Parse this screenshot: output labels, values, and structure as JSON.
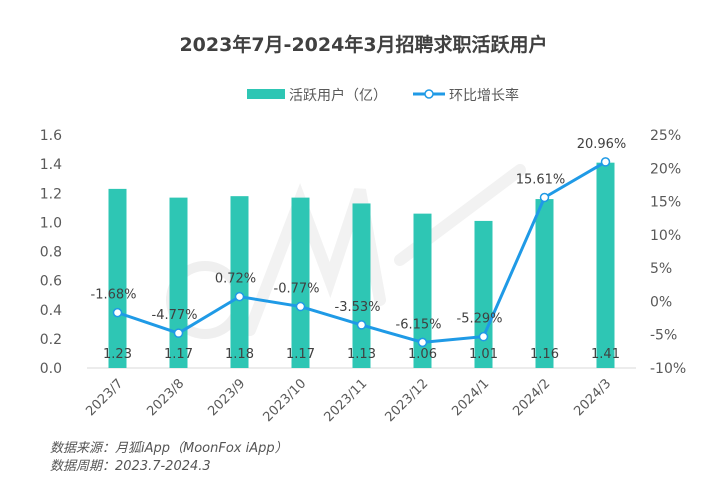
{
  "chart_data": {
    "type": "bar+line",
    "title": "2023年7月-2024年3月招聘求职活跃用户",
    "categories": [
      "2023/7",
      "2023/8",
      "2023/9",
      "2023/10",
      "2023/11",
      "2023/12",
      "2024/1",
      "2024/2",
      "2024/3"
    ],
    "series": [
      {
        "name": "活跃用户（亿）",
        "type": "bar",
        "axis": "left",
        "color": "#2ec6b4",
        "values": [
          1.23,
          1.17,
          1.18,
          1.17,
          1.13,
          1.06,
          1.01,
          1.16,
          1.41
        ],
        "labels": [
          "1.23",
          "1.17",
          "1.18",
          "1.17",
          "1.13",
          "1.06",
          "1.01",
          "1.16",
          "1.41"
        ]
      },
      {
        "name": "环比增长率",
        "type": "line",
        "axis": "right",
        "color": "#1f9ae6",
        "values": [
          -1.68,
          -4.77,
          0.72,
          -0.77,
          -3.53,
          -6.15,
          -5.29,
          15.61,
          20.96
        ],
        "labels": [
          "-1.68%",
          "-4.77%",
          "0.72%",
          "-0.77%",
          "-3.53%",
          "-6.15%",
          "-5.29%",
          "15.61%",
          "20.96%"
        ]
      }
    ],
    "left_axis": {
      "ylim": [
        0,
        1.6
      ],
      "ticks": [
        "0.0",
        "0.2",
        "0.4",
        "0.6",
        "0.8",
        "1.0",
        "1.2",
        "1.4",
        "1.6"
      ]
    },
    "right_axis": {
      "ylim": [
        -10,
        25
      ],
      "ticks": [
        "-10%",
        "-5%",
        "0%",
        "5%",
        "10%",
        "15%",
        "20%",
        "25%"
      ]
    },
    "legend_position": "top",
    "grid": false
  },
  "watermark": "MoonFox",
  "source": {
    "line1": "数据来源：月狐iApp（MoonFox iApp）",
    "line2": "数据周期：2023.7-2024.3"
  }
}
